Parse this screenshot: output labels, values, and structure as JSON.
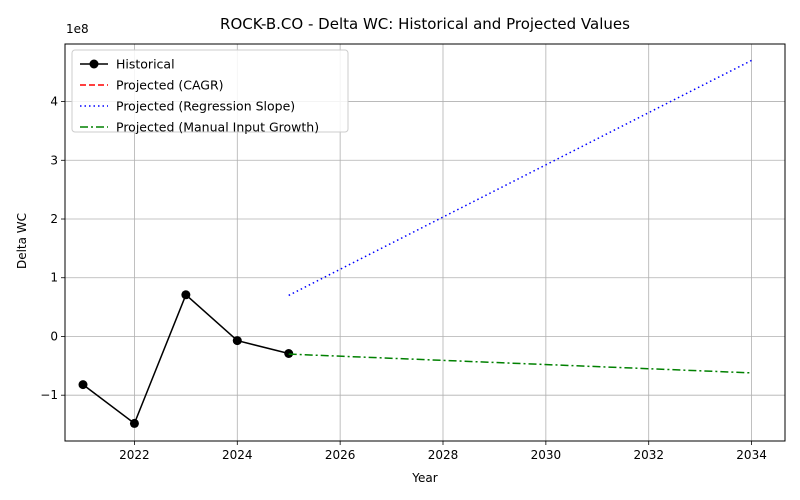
{
  "chart_data": {
    "type": "line",
    "title": "ROCK-B.CO - Delta WC: Historical and Projected Values",
    "xlabel": "Year",
    "ylabel": "Delta WC",
    "y_offset_label": "1e8",
    "xlim": [
      2020.65,
      2034.65
    ],
    "ylim": [
      -1.78,
      4.98
    ],
    "y_scale_note": "values in units of 1e8",
    "x_ticks": [
      2022,
      2024,
      2026,
      2028,
      2030,
      2032,
      2034
    ],
    "y_ticks": [
      -1,
      0,
      1,
      2,
      3,
      4
    ],
    "grid": true,
    "legend_position": "top-left",
    "series": [
      {
        "name": "Historical",
        "style": "solid",
        "marker": "circle",
        "color": "#000000",
        "x": [
          2021,
          2022,
          2023,
          2024,
          2025
        ],
        "y": [
          -0.82,
          -1.48,
          0.71,
          -0.07,
          -0.29
        ]
      },
      {
        "name": "Projected (CAGR)",
        "style": "dashed",
        "marker": "none",
        "color": "#ff0000",
        "x": [],
        "y": []
      },
      {
        "name": "Projected (Regression Slope)",
        "style": "dotted",
        "marker": "none",
        "color": "#0000ff",
        "x": [
          2025,
          2034
        ],
        "y": [
          0.7,
          4.7
        ]
      },
      {
        "name": "Projected (Manual Input Growth)",
        "style": "dashdot",
        "marker": "none",
        "color": "#008000",
        "x": [
          2025,
          2034
        ],
        "y": [
          -0.3,
          -0.62
        ]
      }
    ]
  }
}
